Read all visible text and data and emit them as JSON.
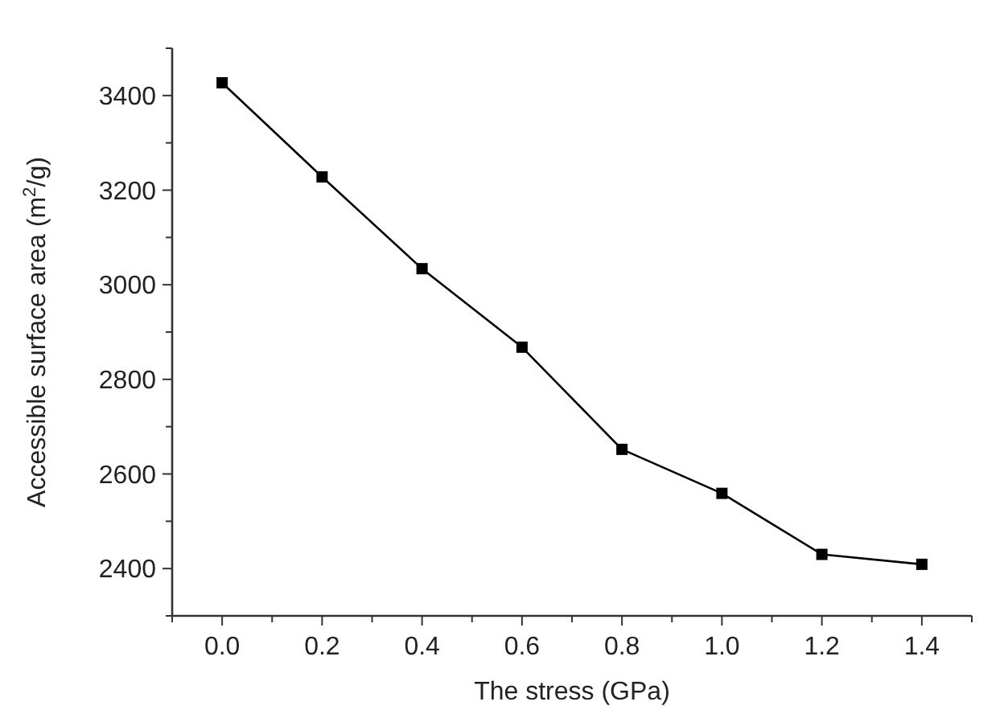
{
  "chart_data": {
    "type": "line",
    "xlabel": "The stress (GPa)",
    "ylabel": "Accessible surface area (m$^{2}$/g)",
    "x": [
      0,
      0.2,
      0.4,
      0.6,
      0.8,
      1.0,
      1.2,
      1.4
    ],
    "series": [
      {
        "color": "#000000",
        "values": [
          3427,
          3228,
          3034,
          2868,
          2652,
          2559,
          2430,
          2409
        ]
      }
    ],
    "xlim": [
      -0.1,
      1.5
    ],
    "xticks": [
      {
        "value": -0.1,
        "label": null
      },
      {
        "value": 0,
        "label": "0.0"
      },
      {
        "value": 0.1,
        "label": null
      },
      {
        "value": 0.2,
        "label": "0.2"
      },
      {
        "value": 0.3,
        "label": null
      },
      {
        "value": 0.4,
        "label": "0.4"
      },
      {
        "value": 0.5,
        "label": null
      },
      {
        "value": 0.6,
        "label": "0.6"
      },
      {
        "value": 0.7,
        "label": null
      },
      {
        "value": 0.8,
        "label": "0.8"
      },
      {
        "value": 0.9,
        "label": null
      },
      {
        "value": 1.0,
        "label": "1.0"
      },
      {
        "value": 1.1,
        "label": null
      },
      {
        "value": 1.2,
        "label": "1.2"
      },
      {
        "value": 1.3,
        "label": null
      },
      {
        "value": 1.4,
        "label": "1.4"
      },
      {
        "value": 1.5,
        "label": null
      }
    ],
    "ylim": [
      2300,
      3500
    ],
    "yticks": [
      {
        "value": 2300,
        "label": null
      },
      2400,
      {
        "value": 2500,
        "label": null
      },
      2600,
      {
        "value": 2700,
        "label": null
      },
      2800,
      {
        "value": 2900,
        "label": null
      },
      3000,
      {
        "value": 3100,
        "label": null
      },
      3200,
      {
        "value": 3300,
        "label": null
      },
      3400,
      {
        "value": 3500,
        "label": null
      }
    ],
    "marker": "square",
    "line_style": "solid"
  }
}
